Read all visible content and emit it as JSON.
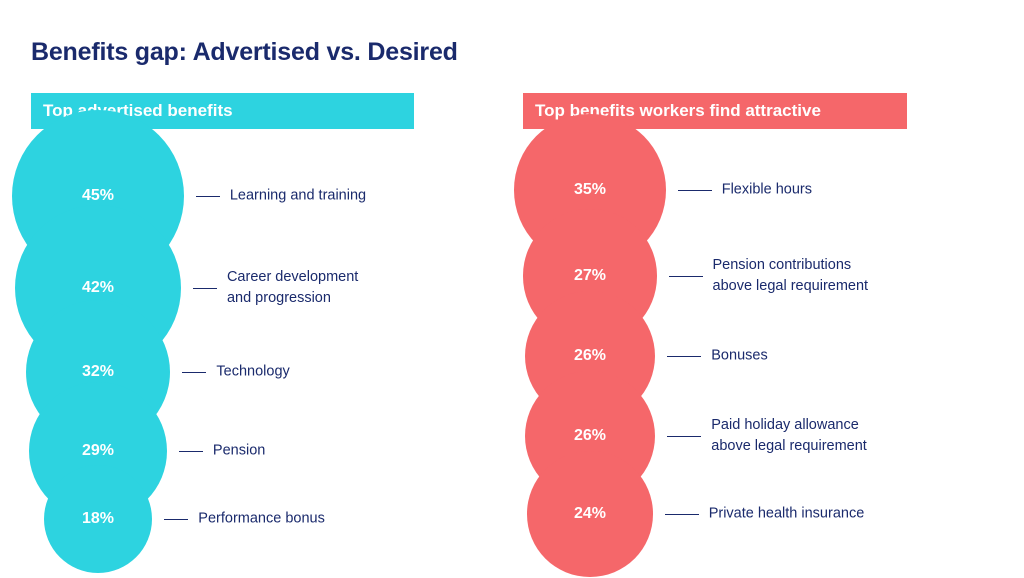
{
  "title": "Benefits gap: Advertised vs. Desired",
  "left_header": "Top advertised benefits",
  "right_header": "Top benefits workers find attractive",
  "colors": {
    "advertised": "#2dd3e0",
    "desired": "#f5676a",
    "text": "#1a2a6c"
  },
  "chart_data": [
    {
      "type": "bubble",
      "title": "Top advertised benefits",
      "unit": "%",
      "categories": [
        [
          "Learning and training"
        ],
        [
          "Career development",
          "and progression"
        ],
        [
          "Technology"
        ],
        [
          "Pension"
        ],
        [
          "Performance bonus"
        ]
      ],
      "values": [
        45,
        42,
        32,
        29,
        18
      ],
      "value_labels": [
        "45%",
        "42%",
        "32%",
        "29%",
        "18%"
      ]
    },
    {
      "type": "bubble",
      "title": "Top benefits workers find attractive",
      "unit": "%",
      "categories": [
        [
          "Flexible hours"
        ],
        [
          "Pension contributions",
          "above legal requirement"
        ],
        [
          "Bonuses"
        ],
        [
          "Paid holiday allowance",
          "above legal requirement"
        ],
        [
          "Private health insurance"
        ]
      ],
      "values": [
        35,
        27,
        26,
        26,
        24
      ],
      "value_labels": [
        "35%",
        "27%",
        "26%",
        "26%",
        "24%"
      ]
    }
  ]
}
